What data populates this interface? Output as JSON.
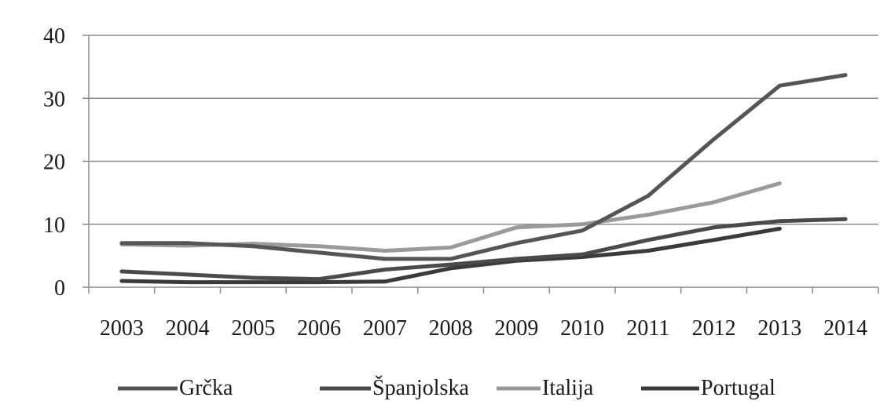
{
  "chart_data": {
    "type": "line",
    "title": "",
    "xlabel": "",
    "ylabel": "",
    "categories": [
      "2003",
      "2004",
      "2005",
      "2006",
      "2007",
      "2008",
      "2009",
      "2010",
      "2011",
      "2012",
      "2013",
      "2014"
    ],
    "ylim": [
      0,
      40
    ],
    "yticks": [
      0,
      10,
      20,
      30,
      40
    ],
    "grid": "horizontal",
    "legend_position": "bottom",
    "series": [
      {
        "name": "Grčka",
        "color": "#555555",
        "values": [
          7,
          7,
          6.5,
          5.5,
          4.5,
          4.5,
          7,
          9,
          14.5,
          23.5,
          32,
          33.7
        ]
      },
      {
        "name": "Španjolska",
        "color": "#4a4a4a",
        "values": [
          2.5,
          2,
          1.5,
          1.3,
          2.8,
          3.6,
          4.5,
          5.2,
          7.5,
          9.5,
          10.5,
          10.8
        ]
      },
      {
        "name": "Italija",
        "color": "#9a9a9a",
        "values": [
          6.8,
          6.6,
          6.9,
          6.5,
          5.8,
          6.3,
          9.5,
          10,
          11.5,
          13.5,
          16.5,
          null
        ]
      },
      {
        "name": "Portugal",
        "color": "#3a3a3a",
        "values": [
          1,
          0.8,
          0.8,
          0.8,
          0.9,
          3,
          4.2,
          4.8,
          5.8,
          7.5,
          9.3,
          null
        ]
      }
    ]
  }
}
